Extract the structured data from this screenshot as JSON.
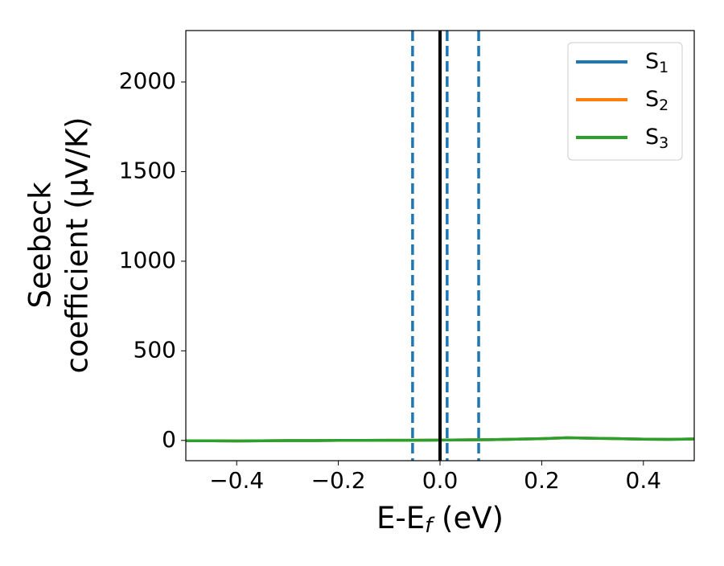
{
  "chart_data": {
    "type": "line",
    "xlabel": {
      "main": "E-E",
      "sub": "f",
      "rest": " (eV)"
    },
    "ylabel": [
      "Seebeck",
      "coefficient  (μV/K)"
    ],
    "x": [
      -0.5,
      -0.45,
      -0.4,
      -0.35,
      -0.3,
      -0.25,
      -0.2,
      -0.15,
      -0.1,
      -0.05,
      0.0,
      0.05,
      0.1,
      0.15,
      0.2,
      0.25,
      0.3,
      0.35,
      0.4,
      0.45,
      0.5
    ],
    "series": [
      {
        "name": {
          "main": "S",
          "sub": "1"
        },
        "color": "#1f77b4",
        "values": [
          -2,
          -2,
          -3,
          -2,
          -1,
          -1,
          0,
          0,
          1,
          1,
          2,
          3,
          4,
          7,
          10,
          15,
          12,
          10,
          7,
          6,
          8
        ]
      },
      {
        "name": {
          "main": "S",
          "sub": "2"
        },
        "color": "#ff7f0e",
        "values": [
          -2,
          -2,
          -3,
          -2,
          -1,
          -1,
          0,
          0,
          1,
          1,
          2,
          3,
          4,
          7,
          10,
          15,
          12,
          10,
          7,
          6,
          8
        ]
      },
      {
        "name": {
          "main": "S",
          "sub": "3"
        },
        "color": "#2ca02c",
        "values": [
          -2,
          -2,
          -3,
          -2,
          -1,
          -1,
          0,
          0,
          1,
          1,
          2,
          3,
          4,
          7,
          10,
          15,
          12,
          10,
          7,
          6,
          8
        ]
      }
    ],
    "vlines": [
      {
        "x": 0.0,
        "color": "#000000",
        "style": "solid"
      },
      {
        "x": -0.054,
        "color": "#1f77b4",
        "style": "dashed"
      },
      {
        "x": 0.014,
        "color": "#1f77b4",
        "style": "dashed"
      },
      {
        "x": 0.076,
        "color": "#1f77b4",
        "style": "dashed"
      }
    ],
    "xlim": [
      -0.5,
      0.5
    ],
    "xticks": [
      {
        "value": -0.4,
        "label": "−0.4"
      },
      {
        "value": -0.2,
        "label": "−0.2"
      },
      {
        "value": 0.0,
        "label": "0.0"
      },
      0.2,
      0.4
    ],
    "ylim": [
      -113,
      2287
    ],
    "yticks": [
      0,
      500,
      1000,
      1500,
      2000
    ],
    "legend": "upper right"
  }
}
